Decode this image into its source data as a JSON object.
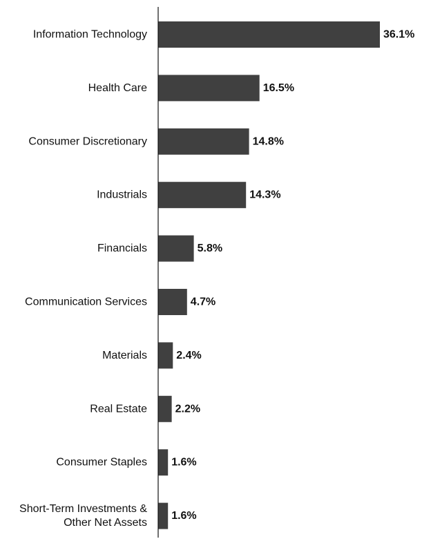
{
  "chart_data": {
    "type": "bar",
    "orientation": "horizontal",
    "categories": [
      "Information Technology",
      "Health Care",
      "Consumer Discretionary",
      "Industrials",
      "Financials",
      "Communication Services",
      "Materials",
      "Real Estate",
      "Consumer Staples",
      "Short-Term Investments & Other Net Assets"
    ],
    "category_lines": [
      [
        "Information Technology"
      ],
      [
        "Health Care"
      ],
      [
        "Consumer Discretionary"
      ],
      [
        "Industrials"
      ],
      [
        "Financials"
      ],
      [
        "Communication Services"
      ],
      [
        "Materials"
      ],
      [
        "Real Estate"
      ],
      [
        "Consumer Staples"
      ],
      [
        "Short-Term Investments &",
        "Other Net Assets"
      ]
    ],
    "values": [
      36.1,
      16.5,
      14.8,
      14.3,
      5.8,
      4.7,
      2.4,
      2.2,
      1.6,
      1.6
    ],
    "value_labels": [
      "36.1%",
      "16.5%",
      "14.8%",
      "14.3%",
      "5.8%",
      "4.7%",
      "2.4%",
      "2.2%",
      "1.6%",
      "1.6%"
    ],
    "xlim": [
      0,
      36.1
    ],
    "grid": false,
    "legend": "none",
    "bar_color": "#404040"
  }
}
